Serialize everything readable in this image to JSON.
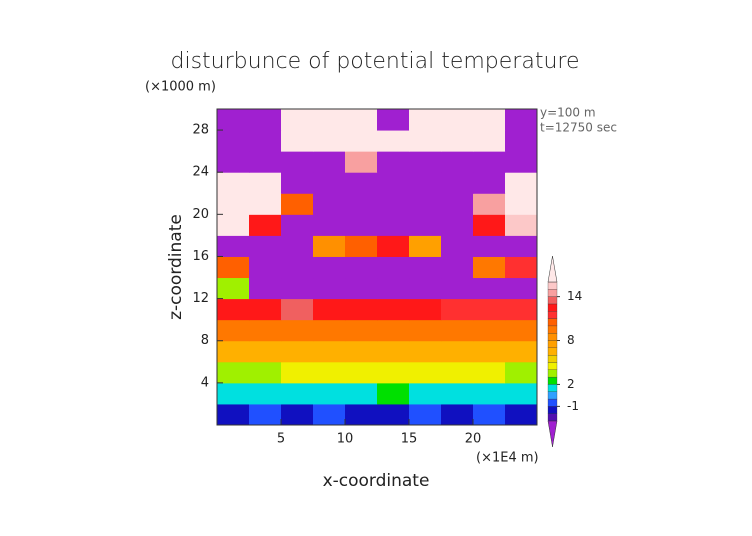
{
  "chart_data": {
    "type": "heatmap",
    "title": "disturbunce of potential temperature",
    "y_unit": "(×1000 m)",
    "x_unit": "(×1E4 m)",
    "annotations": [
      "y=100 m",
      "t=12750 sec"
    ],
    "xlabel": "x-coordinate",
    "ylabel": "z-coordinate",
    "xlim": [
      0,
      25
    ],
    "ylim": [
      0,
      30
    ],
    "xticks": [
      5,
      10,
      15,
      20
    ],
    "yticks": [
      4,
      8,
      12,
      16,
      20,
      24,
      28
    ],
    "x": [
      1.25,
      3.75,
      6.25,
      8.75,
      11.25,
      13.75,
      16.25,
      18.75,
      21.25,
      23.75
    ],
    "z": [
      1,
      3,
      5,
      7,
      9,
      11,
      13,
      15,
      17,
      19,
      21,
      23,
      25,
      27,
      29
    ],
    "values": [
      [
        -2,
        -1,
        -2,
        -1,
        -2,
        -2,
        -1,
        -2,
        -1,
        -2
      ],
      [
        1,
        1,
        1,
        1,
        1,
        2,
        1,
        1,
        1,
        1
      ],
      [
        3,
        3,
        4,
        4,
        4,
        4,
        4,
        4,
        4,
        3
      ],
      [
        6,
        6,
        6,
        6,
        6,
        6,
        6,
        6,
        6,
        6
      ],
      [
        9,
        9,
        9,
        9,
        9,
        9,
        9,
        9,
        9,
        9
      ],
      [
        12,
        12,
        13,
        12,
        12,
        12,
        12,
        11,
        11,
        11
      ],
      [
        3,
        -4,
        -4,
        -4,
        -4,
        -4,
        -4,
        -4,
        -4,
        -4
      ],
      [
        10,
        -4,
        -4,
        -4,
        -4,
        -4,
        -4,
        -4,
        9,
        11
      ],
      [
        -4,
        -4,
        -4,
        8,
        10,
        12,
        7,
        -4,
        -4,
        -4
      ],
      [
        17,
        12,
        -4,
        -4,
        -4,
        -4,
        -4,
        -4,
        12,
        15
      ],
      [
        17,
        17,
        10,
        -4,
        -4,
        -4,
        -4,
        -4,
        14,
        17
      ],
      [
        17,
        17,
        -4,
        -4,
        -4,
        -4,
        -4,
        -4,
        -4,
        17
      ],
      [
        -4,
        -4,
        -4,
        -4,
        14,
        -4,
        -4,
        -4,
        -4,
        -4
      ],
      [
        -4,
        -4,
        17,
        17,
        17,
        17,
        17,
        17,
        17,
        -4
      ],
      [
        -4,
        -4,
        17,
        17,
        17,
        -4,
        17,
        17,
        17,
        -4
      ]
    ],
    "levels": [
      -3,
      -2,
      -1,
      0,
      1,
      2,
      3,
      4,
      5,
      6,
      7,
      8,
      9,
      10,
      11,
      12,
      13,
      14,
      15,
      16
    ],
    "colors": [
      "#a020d0",
      "#5010b0",
      "#1010c0",
      "#2050ff",
      "#30a0ff",
      "#00e0e0",
      "#00e000",
      "#a0f000",
      "#f0f000",
      "#f0d000",
      "#ffb000",
      "#ffa000",
      "#ff9000",
      "#ff7800",
      "#ff6000",
      "#ff3030",
      "#ff1818",
      "#f06060",
      "#f8a0a0",
      "#fcc8c8",
      "#ffe8e8"
    ],
    "colorbar_ticks": [
      -1,
      2,
      8,
      14
    ]
  }
}
